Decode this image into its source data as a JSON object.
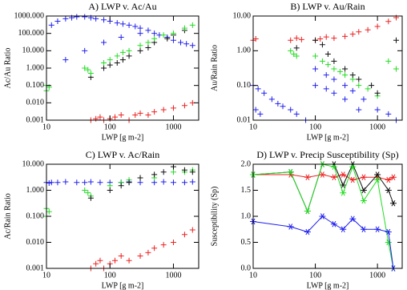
{
  "chart_data": [
    {
      "type": "scatter",
      "title": "A) LWP v. Ac/Au",
      "x_label": "LWP [g m-2]",
      "y_label": "Ac/Au Ratio",
      "log_x": true,
      "log_y": true,
      "marker": "plus",
      "xlim": [
        10,
        2500
      ],
      "ylim": [
        0.001,
        1000
      ],
      "xticks": [
        10,
        100,
        1000
      ],
      "yticks": [
        {
          "value": 0.001,
          "label": "0.001"
        },
        {
          "value": 0.01,
          "label": "0.010"
        },
        {
          "value": 0.1,
          "label": "0.100"
        },
        {
          "value": 1,
          "label": "1.000"
        },
        {
          "value": 10,
          "label": "10.000"
        },
        {
          "value": 100,
          "label": "100.000"
        },
        {
          "value": 1000,
          "label": "1000.000"
        }
      ],
      "series": [
        {
          "color": "#2222ee",
          "x": [
            12,
            15,
            20,
            25,
            30,
            40,
            50,
            60,
            80,
            100,
            130,
            160,
            200,
            250,
            300,
            400,
            500,
            600,
            800,
            1000,
            1300,
            1600,
            2000,
            20,
            40,
            80,
            150,
            300
          ],
          "values": [
            300,
            500,
            700,
            800,
            900,
            900,
            800,
            700,
            600,
            500,
            400,
            350,
            300,
            250,
            200,
            150,
            100,
            80,
            60,
            40,
            30,
            25,
            20,
            3,
            10,
            30,
            60,
            100
          ]
        },
        {
          "color": "#111111",
          "x": [
            50,
            80,
            100,
            130,
            160,
            200,
            300,
            400,
            500,
            800,
            1000,
            1500
          ],
          "values": [
            0.3,
            1,
            1.5,
            2,
            3,
            5,
            10,
            15,
            30,
            50,
            80,
            150
          ]
        },
        {
          "color": "#22dd22",
          "x": [
            10,
            10,
            11,
            40,
            45,
            50,
            80,
            100,
            130,
            160,
            200,
            300,
            400,
            500,
            700,
            1000,
            1500,
            2000
          ],
          "values": [
            0.1,
            0.05,
            0.08,
            1,
            0.8,
            0.5,
            2,
            3,
            5,
            8,
            10,
            20,
            30,
            50,
            80,
            100,
            200,
            300
          ]
        },
        {
          "color": "#ee2222",
          "x": [
            50,
            60,
            70,
            80,
            100,
            120,
            150,
            200,
            250,
            300,
            400,
            500,
            700,
            1000,
            1500,
            2000
          ],
          "values": [
            0.001,
            0.0012,
            0.0015,
            0.001,
            0.0012,
            0.0015,
            0.002,
            0.001,
            0.002,
            0.0025,
            0.002,
            0.003,
            0.004,
            0.005,
            0.007,
            0.01
          ]
        }
      ]
    },
    {
      "type": "scatter",
      "title": "B) LWP v. Au/Rain",
      "x_label": "LWP [g m-2]",
      "y_label": "Au/Rain Ratio",
      "log_x": true,
      "log_y": true,
      "marker": "plus",
      "xlim": [
        10,
        2500
      ],
      "ylim": [
        0.01,
        10
      ],
      "xticks": [
        10,
        100,
        1000
      ],
      "yticks": [
        {
          "value": 0.01,
          "label": "0.01"
        },
        {
          "value": 0.1,
          "label": "0.10"
        },
        {
          "value": 1,
          "label": "1.00"
        },
        {
          "value": 10,
          "label": "10.00"
        }
      ],
      "series": [
        {
          "color": "#ee2222",
          "x": [
            10,
            11,
            40,
            50,
            60,
            100,
            120,
            150,
            200,
            300,
            400,
            500,
            700,
            1000,
            1500,
            2000
          ],
          "values": [
            2,
            2.2,
            2,
            2.3,
            2.1,
            2,
            2.2,
            2.5,
            2.3,
            2.6,
            3,
            3.5,
            4,
            5,
            7,
            9
          ]
        },
        {
          "color": "#2222ee",
          "x": [
            10,
            12,
            15,
            20,
            25,
            30,
            40,
            50,
            70,
            100,
            150,
            200,
            300,
            500,
            100,
            150,
            200,
            300,
            400,
            600,
            1000,
            1500,
            2000,
            11,
            13
          ],
          "values": [
            0.1,
            0.08,
            0.06,
            0.04,
            0.03,
            0.025,
            0.02,
            0.015,
            0.01,
            0.1,
            0.08,
            0.06,
            0.04,
            0.02,
            0.3,
            0.2,
            0.15,
            0.1,
            0.07,
            0.04,
            0.02,
            0.015,
            0.01,
            0.02,
            0.015
          ]
        },
        {
          "color": "#22dd22",
          "x": [
            40,
            45,
            50,
            100,
            130,
            160,
            200,
            250,
            300,
            400,
            500,
            700,
            1000,
            1500,
            2000
          ],
          "values": [
            1,
            0.8,
            0.7,
            0.7,
            0.5,
            0.4,
            0.3,
            0.25,
            0.2,
            0.15,
            0.1,
            0.08,
            0.05,
            0.5,
            0.3
          ]
        },
        {
          "color": "#111111",
          "x": [
            50,
            100,
            130,
            160,
            200,
            300,
            400,
            500,
            800,
            1000,
            2000
          ],
          "values": [
            1.2,
            2,
            1.5,
            0.8,
            0.5,
            0.3,
            0.2,
            0.15,
            0.1,
            0.06,
            2
          ]
        }
      ]
    },
    {
      "type": "scatter",
      "title": "C) LWP v. Ac/Rain",
      "x_label": "LWP [g m-2]",
      "y_label": "Ac/Rain Ratio",
      "log_x": true,
      "log_y": true,
      "marker": "plus",
      "xlim": [
        10,
        2500
      ],
      "ylim": [
        0.001,
        10
      ],
      "xticks": [
        10,
        100,
        1000
      ],
      "yticks": [
        {
          "value": 0.001,
          "label": "0.001"
        },
        {
          "value": 0.01,
          "label": "0.010"
        },
        {
          "value": 0.1,
          "label": "0.100"
        },
        {
          "value": 1,
          "label": "1.000"
        },
        {
          "value": 10,
          "label": "10.000"
        }
      ],
      "series": [
        {
          "color": "#2222ee",
          "x": [
            10,
            11,
            12,
            15,
            20,
            30,
            40,
            50,
            70,
            100,
            150,
            200,
            300,
            500,
            700,
            1000,
            1500,
            2000
          ],
          "values": [
            2,
            1.9,
            2,
            2,
            2.1,
            2,
            2,
            2.1,
            2,
            2,
            2,
            2.1,
            2,
            2,
            2.1,
            2,
            2,
            2.1
          ]
        },
        {
          "color": "#22dd22",
          "x": [
            10,
            10,
            11,
            40,
            45,
            50,
            100,
            150,
            200,
            300,
            500,
            1000,
            1500,
            2000
          ],
          "values": [
            0.2,
            0.1,
            0.15,
            1,
            0.8,
            0.6,
            1.5,
            2,
            2.5,
            3,
            3,
            5,
            5,
            6
          ]
        },
        {
          "color": "#111111",
          "x": [
            50,
            100,
            150,
            200,
            300,
            500,
            700,
            1000,
            1500,
            2000
          ],
          "values": [
            0.5,
            1,
            1.5,
            2,
            3,
            4,
            5,
            8,
            6,
            5
          ]
        },
        {
          "color": "#ee2222",
          "x": [
            50,
            60,
            70,
            80,
            100,
            120,
            150,
            200,
            300,
            400,
            500,
            700,
            1000,
            1500,
            2000
          ],
          "values": [
            0.001,
            0.0015,
            0.002,
            0.001,
            0.0015,
            0.002,
            0.003,
            0.002,
            0.003,
            0.004,
            0.006,
            0.008,
            0.01,
            0.02,
            0.03
          ]
        }
      ]
    },
    {
      "type": "line",
      "title": "D) LWP v. Precip Susceptibility (Sp)",
      "x_label": "LWP [g m-2]",
      "y_label": "Susceptibility (Sp)",
      "log_x": true,
      "log_y": false,
      "marker": "asterisk",
      "xlim": [
        10,
        2500
      ],
      "ylim": [
        0,
        2
      ],
      "xticks": [
        10,
        100,
        1000
      ],
      "yticks": [
        {
          "value": 0,
          "label": "0.0"
        },
        {
          "value": 0.5,
          "label": "0.5"
        },
        {
          "value": 1,
          "label": "1.0"
        },
        {
          "value": 1.5,
          "label": "1.5"
        },
        {
          "value": 2,
          "label": "2.0"
        }
      ],
      "series": [
        {
          "color": "#ee2222",
          "x": [
            10,
            40,
            75,
            130,
            200,
            280,
            400,
            600,
            1000,
            1500,
            1800
          ],
          "values": [
            1.8,
            1.8,
            1.75,
            1.8,
            1.75,
            1.8,
            1.7,
            1.75,
            1.75,
            1.7,
            1.75
          ]
        },
        {
          "color": "#111111",
          "x": [
            10,
            40,
            75,
            130,
            200,
            280,
            400,
            600,
            1000,
            1500,
            1800
          ],
          "values": [
            1.8,
            1.85,
            1.1,
            2.0,
            2.0,
            1.6,
            2.0,
            1.5,
            1.8,
            1.5,
            1.25
          ]
        },
        {
          "color": "#22dd22",
          "x": [
            10,
            40,
            75,
            130,
            200,
            280,
            400,
            600,
            1000,
            1500,
            1800
          ],
          "values": [
            1.8,
            1.85,
            1.1,
            2.0,
            1.95,
            1.45,
            1.95,
            1.3,
            1.7,
            0.5,
            0.0
          ]
        },
        {
          "color": "#2222ee",
          "x": [
            10,
            40,
            75,
            130,
            200,
            280,
            400,
            600,
            1000,
            1500,
            1800
          ],
          "values": [
            0.9,
            0.8,
            0.7,
            1.0,
            0.85,
            0.75,
            0.95,
            0.75,
            0.75,
            0.7,
            0.0
          ]
        }
      ]
    }
  ]
}
